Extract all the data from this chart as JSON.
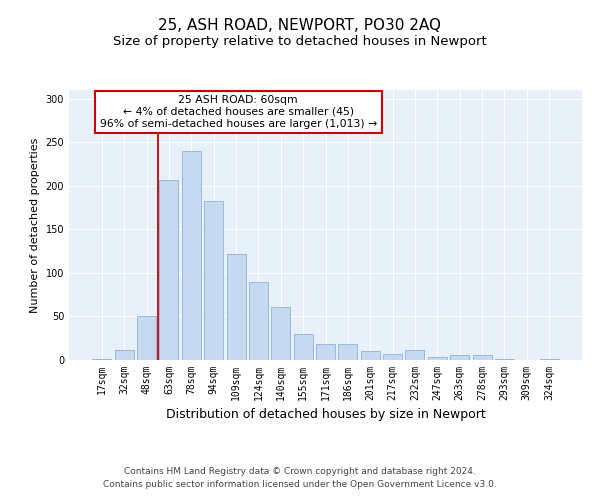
{
  "title": "25, ASH ROAD, NEWPORT, PO30 2AQ",
  "subtitle": "Size of property relative to detached houses in Newport",
  "xlabel": "Distribution of detached houses by size in Newport",
  "ylabel": "Number of detached properties",
  "categories": [
    "17sqm",
    "32sqm",
    "48sqm",
    "63sqm",
    "78sqm",
    "94sqm",
    "109sqm",
    "124sqm",
    "140sqm",
    "155sqm",
    "171sqm",
    "186sqm",
    "201sqm",
    "217sqm",
    "232sqm",
    "247sqm",
    "263sqm",
    "278sqm",
    "293sqm",
    "309sqm",
    "324sqm"
  ],
  "values": [
    1,
    12,
    50,
    207,
    240,
    182,
    122,
    90,
    61,
    30,
    18,
    18,
    10,
    7,
    11,
    4,
    6,
    6,
    1,
    0,
    1
  ],
  "bar_color": "#c6d9f0",
  "bar_edge_color": "#8ab4d9",
  "annotation_text": "25 ASH ROAD: 60sqm\n← 4% of detached houses are smaller (45)\n96% of semi-detached houses are larger (1,013) →",
  "annotation_box_color": "#ffffff",
  "annotation_box_edge": "#cc0000",
  "vline_color": "#cc0000",
  "ylim": [
    0,
    310
  ],
  "yticks": [
    0,
    50,
    100,
    150,
    200,
    250,
    300
  ],
  "background_color": "#e8f0fa",
  "footer_line1": "Contains HM Land Registry data © Crown copyright and database right 2024.",
  "footer_line2": "Contains public sector information licensed under the Open Government Licence v3.0.",
  "title_fontsize": 11,
  "subtitle_fontsize": 9.5,
  "xlabel_fontsize": 9,
  "ylabel_fontsize": 8,
  "tick_fontsize": 7,
  "footer_fontsize": 6.5
}
